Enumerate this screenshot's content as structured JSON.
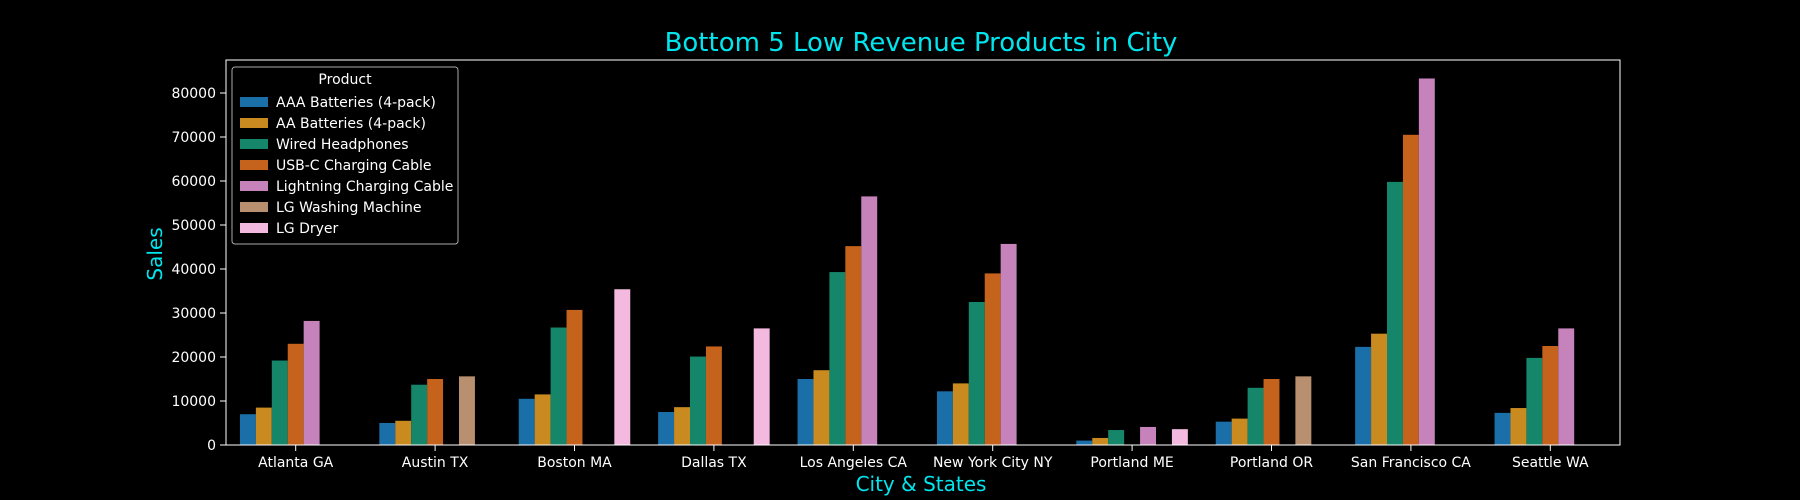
{
  "chart_data": {
    "type": "bar",
    "title": "Bottom 5 Low Revenue Products in City",
    "xlabel": "City & States",
    "ylabel": "Sales",
    "ylim": [
      0,
      87500
    ],
    "yticks": [
      0,
      10000,
      20000,
      30000,
      40000,
      50000,
      60000,
      70000,
      80000
    ],
    "grid": false,
    "legend_title": "Product",
    "legend_position": "top-left",
    "categories": [
      "Atlanta GA",
      "Austin TX",
      "Boston MA",
      "Dallas TX",
      "Los Angeles CA",
      "New York City NY",
      "Portland ME",
      "Portland OR",
      "San Francisco CA",
      "Seattle WA"
    ],
    "series": [
      {
        "name": "AAA Batteries (4-pack)",
        "color": "#1a6fa8",
        "values": [
          7000,
          5000,
          10500,
          7500,
          15000,
          12200,
          1000,
          5300,
          22300,
          7300
        ]
      },
      {
        "name": "AA Batteries (4-pack)",
        "color": "#c98a1f",
        "values": [
          8500,
          5500,
          11500,
          8600,
          17000,
          14000,
          1600,
          6000,
          25300,
          8400
        ]
      },
      {
        "name": "Wired Headphones",
        "color": "#16866a",
        "values": [
          19200,
          13700,
          26700,
          20100,
          39300,
          32500,
          3400,
          13000,
          59800,
          19800
        ]
      },
      {
        "name": "USB-C Charging Cable",
        "color": "#c5621c",
        "values": [
          23000,
          15000,
          30700,
          22400,
          45200,
          39000,
          null,
          15000,
          70500,
          22500
        ]
      },
      {
        "name": "Lightning Charging Cable",
        "color": "#c683bb",
        "values": [
          28200,
          null,
          null,
          null,
          56500,
          45700,
          4100,
          null,
          83300,
          26500
        ]
      },
      {
        "name": "LG Washing Machine",
        "color": "#b8906f",
        "values": [
          null,
          15600,
          null,
          null,
          null,
          null,
          null,
          15600,
          null,
          null
        ]
      },
      {
        "name": "LG Dryer",
        "color": "#f3b9df",
        "values": [
          null,
          null,
          35400,
          26500,
          null,
          null,
          3600,
          null,
          null,
          null
        ]
      }
    ]
  },
  "colors": {
    "title": "#00e5ee",
    "axis_text": "#ffffff",
    "axis_line": "#ffffff",
    "legend_border": "#aaaaaa"
  }
}
